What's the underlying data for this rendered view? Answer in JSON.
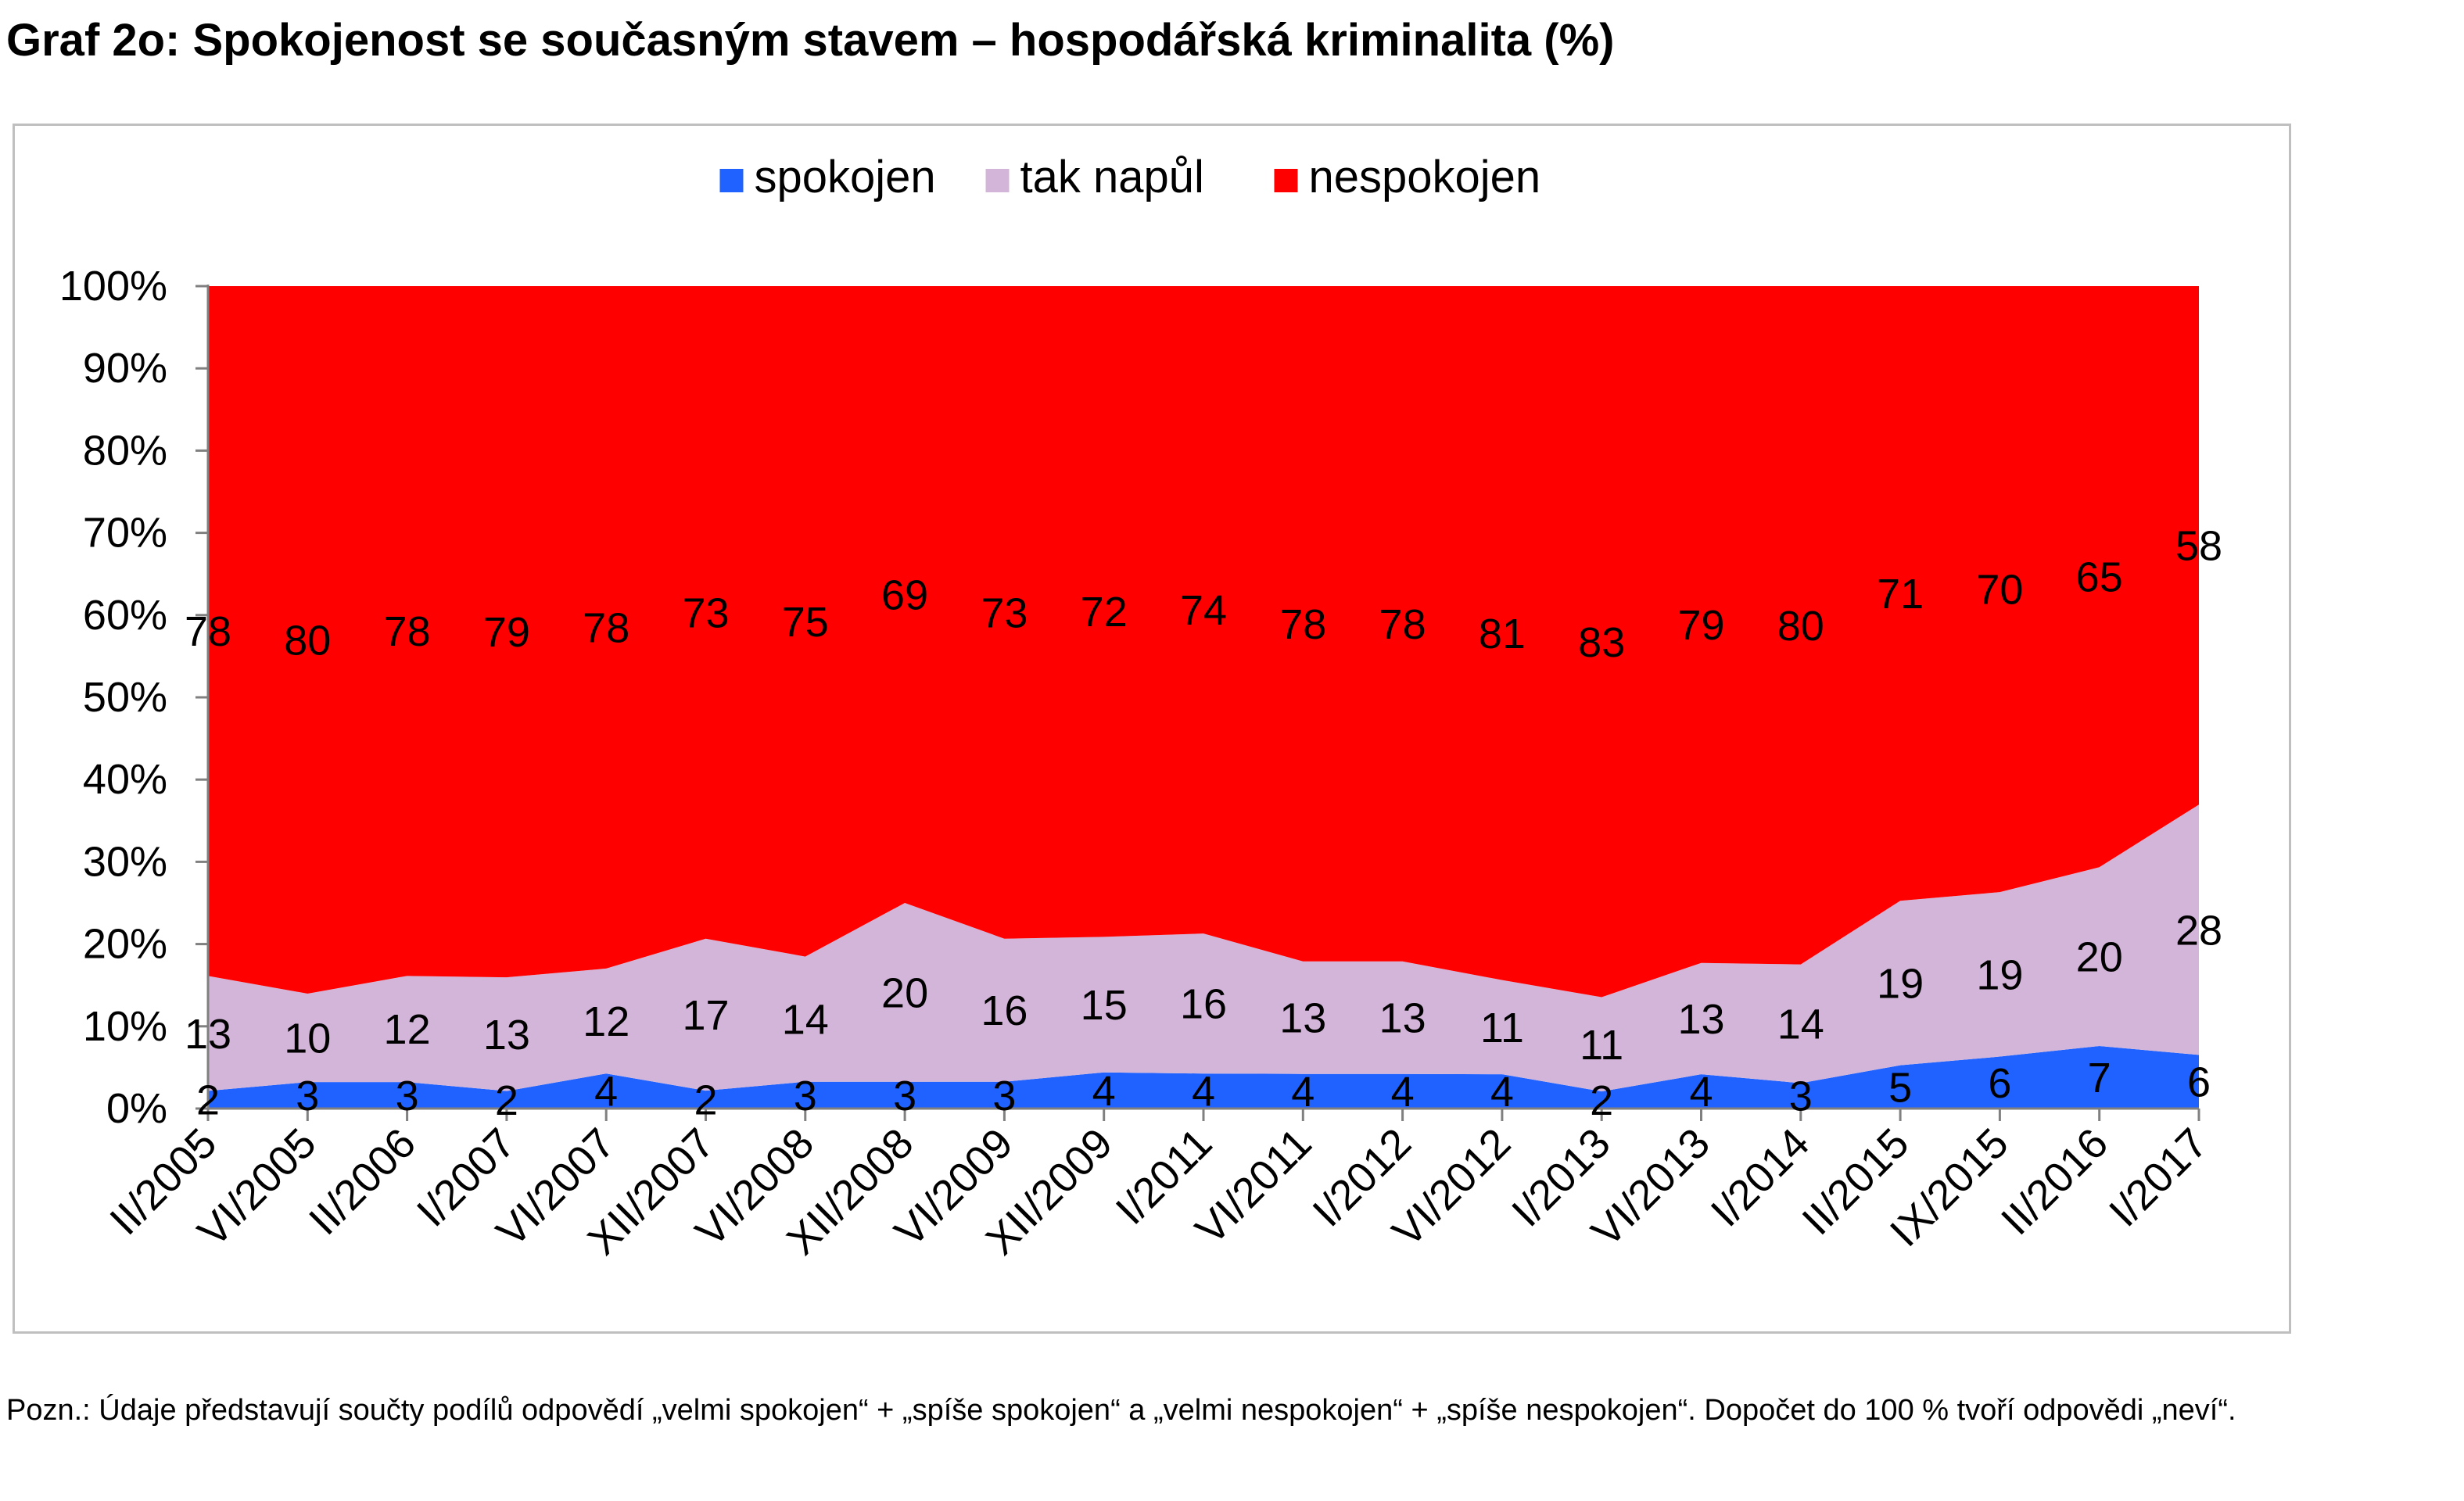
{
  "title": "Graf 2o: Spokojenost se současným stavem – hospodářská kriminalita (%)",
  "note": "Pozn.: Údaje představují součty podílů odpovědí „velmi spokojen“ + „spíše spokojen“ a „velmi nespokojen“ + „spíše nespokojen“. Dopočet do 100 % tvoří odpovědi „neví“.",
  "chart_data": {
    "type": "area",
    "stacked": true,
    "percent_stacked": true,
    "categories": [
      "II/2005",
      "VI/2005",
      "II/2006",
      "I/2007",
      "VI/2007",
      "XII/2007",
      "VI/2008",
      "XII/2008",
      "VI/2009",
      "XII/2009",
      "I/2011",
      "VI/2011",
      "I/2012",
      "VI/2012",
      "I/2013",
      "VI/2013",
      "I/2014",
      "II/2015",
      "IX/2015",
      "II/2016",
      "I/2017"
    ],
    "series": [
      {
        "name": "spokojen",
        "color": "#1F62FF",
        "values": [
          2,
          3,
          3,
          2,
          4,
          2,
          3,
          3,
          3,
          4,
          4,
          4,
          4,
          4,
          2,
          4,
          3,
          5,
          6,
          7,
          6
        ]
      },
      {
        "name": "tak napůl",
        "color": "#D3B5D9",
        "values": [
          13,
          10,
          12,
          13,
          12,
          17,
          14,
          20,
          16,
          15,
          16,
          13,
          13,
          11,
          11,
          13,
          14,
          19,
          19,
          20,
          28
        ]
      },
      {
        "name": "nespokojen",
        "color": "#FF0000",
        "values": [
          78,
          80,
          78,
          79,
          78,
          73,
          75,
          69,
          73,
          72,
          74,
          78,
          78,
          81,
          83,
          79,
          80,
          71,
          70,
          65,
          58
        ]
      }
    ],
    "yticks": [
      "0%",
      "10%",
      "20%",
      "30%",
      "40%",
      "50%",
      "60%",
      "70%",
      "80%",
      "90%",
      "100%"
    ],
    "ylim": [
      0,
      100
    ],
    "legend_position": "top-center",
    "grid": false
  }
}
